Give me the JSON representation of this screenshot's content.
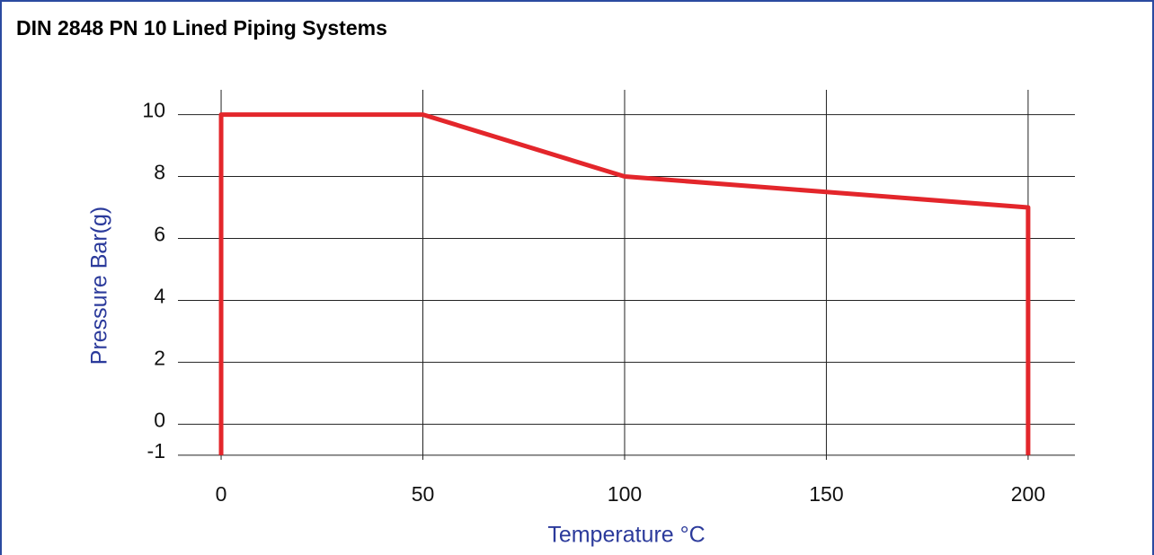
{
  "chart_data": {
    "type": "line",
    "title": "DIN 2848 PN 10 Lined Piping Systems",
    "x_label": "Temperature °C",
    "y_label": "Pressure Bar(g)",
    "series": [
      {
        "name": null,
        "color": "#e3262b",
        "x": [
          0,
          0,
          50,
          100,
          150,
          200,
          200
        ],
        "values": [
          -1,
          10,
          10,
          8,
          7.5,
          7,
          -1
        ]
      }
    ],
    "xlim": [
      -10.7,
      211.6
    ],
    "xticks": [
      0,
      50,
      100,
      150,
      200
    ],
    "ylim": [
      -1.15,
      10.8
    ],
    "yticks": [
      -1,
      0,
      2,
      4,
      6,
      8,
      10
    ],
    "grid": true
  }
}
